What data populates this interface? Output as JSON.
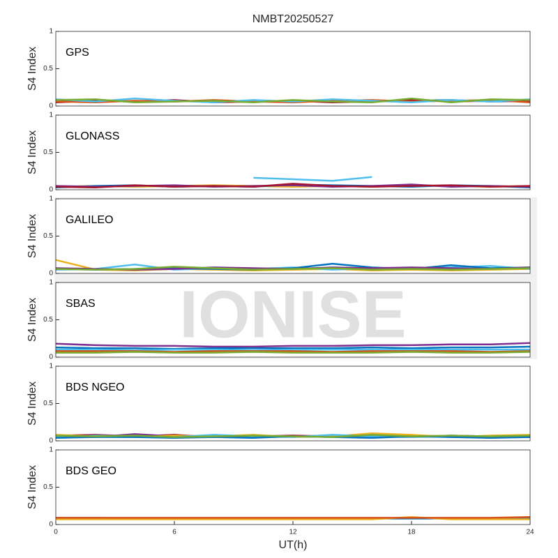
{
  "watermark": "IONISE",
  "chart_data": [
    {
      "type": "line",
      "title": "NMBT20250527",
      "label": "GPS",
      "ylabel": "S4 Index",
      "x": [
        0,
        2,
        4,
        6,
        8,
        10,
        12,
        14,
        16,
        18,
        20,
        22,
        24
      ],
      "xlim": [
        0,
        24
      ],
      "ylim": [
        0,
        1
      ],
      "yticks": [
        0,
        0.5,
        1
      ],
      "series": [
        {
          "color": "#0072BD",
          "values": [
            0.07,
            0.08,
            0.06,
            0.07,
            0.06,
            0.07,
            0.06,
            0.07,
            0.06,
            0.07,
            0.08,
            0.06,
            0.07
          ]
        },
        {
          "color": "#A2142F",
          "values": [
            0.05,
            0.07,
            0.06,
            0.08,
            0.05,
            0.06,
            0.07,
            0.05,
            0.06,
            0.08,
            0.06,
            0.07,
            0.06
          ]
        },
        {
          "color": "#D95319",
          "values": [
            0.06,
            0.05,
            0.07,
            0.06,
            0.08,
            0.06,
            0.05,
            0.07,
            0.08,
            0.06,
            0.07,
            0.08,
            0.05
          ]
        },
        {
          "color": "#4DBEEE",
          "values": [
            0.09,
            0.06,
            0.1,
            0.07,
            0.05,
            0.08,
            0.06,
            0.09,
            0.07,
            0.05,
            0.08,
            0.06,
            0.09
          ]
        },
        {
          "color": "#77AC30",
          "values": [
            0.08,
            0.09,
            0.05,
            0.06,
            0.07,
            0.05,
            0.08,
            0.06,
            0.05,
            0.1,
            0.05,
            0.09,
            0.08
          ]
        }
      ]
    },
    {
      "type": "line",
      "label": "GLONASS",
      "ylabel": "S4 Index",
      "x": [
        0,
        2,
        4,
        6,
        8,
        10,
        12,
        14,
        16,
        18,
        20,
        22,
        24
      ],
      "xlim": [
        0,
        24
      ],
      "ylim": [
        0,
        1
      ],
      "yticks": [
        0,
        0.5,
        1
      ],
      "series": [
        {
          "color": "#EDB120",
          "values": [
            0.04,
            0.05,
            0.04,
            0.05,
            0.06,
            0.05,
            0.04,
            0.05,
            0.04,
            0.06,
            0.05,
            0.04,
            0.05
          ]
        },
        {
          "color": "#0072BD",
          "values": [
            0.03,
            0.05,
            0.06,
            0.04,
            0.05,
            0.04,
            0.07,
            0.06,
            0.05,
            0.04,
            0.06,
            0.05,
            0.03
          ]
        },
        {
          "color": "#4DBEEE",
          "values": [
            null,
            null,
            null,
            null,
            null,
            0.16,
            0.14,
            0.12,
            0.17,
            null,
            null,
            null,
            null
          ]
        },
        {
          "color": "#7E2F8E",
          "values": [
            0.05,
            0.04,
            0.05,
            0.06,
            0.04,
            0.05,
            0.06,
            0.04,
            0.05,
            0.07,
            0.04,
            0.05,
            0.04
          ]
        },
        {
          "color": "#A2142F",
          "values": [
            0.04,
            0.03,
            0.06,
            0.04,
            0.05,
            0.04,
            0.08,
            0.05,
            0.04,
            0.05,
            0.06,
            0.04,
            0.05
          ]
        }
      ]
    },
    {
      "type": "line",
      "label": "GALILEO",
      "ylabel": "S4 Index",
      "x": [
        0,
        2,
        4,
        6,
        8,
        10,
        12,
        14,
        16,
        18,
        20,
        22,
        24
      ],
      "xlim": [
        0,
        24
      ],
      "ylim": [
        0,
        1
      ],
      "yticks": [
        0,
        0.5,
        1
      ],
      "series": [
        {
          "color": "#EDB120",
          "values": [
            0.18,
            0.05,
            0.04,
            0.06,
            0.05,
            0.04,
            0.05,
            0.06,
            0.04,
            0.05,
            0.04,
            0.05,
            0.06
          ]
        },
        {
          "color": "#4DBEEE",
          "values": [
            0.05,
            0.06,
            0.12,
            0.05,
            0.07,
            0.06,
            0.08,
            0.05,
            0.07,
            0.06,
            0.08,
            0.1,
            0.06
          ]
        },
        {
          "color": "#0072BD",
          "values": [
            0.06,
            0.05,
            0.06,
            0.07,
            0.06,
            0.05,
            0.07,
            0.13,
            0.08,
            0.06,
            0.11,
            0.07,
            0.08
          ]
        },
        {
          "color": "#7E2F8E",
          "values": [
            0.07,
            0.06,
            0.05,
            0.06,
            0.08,
            0.07,
            0.06,
            0.08,
            0.07,
            0.08,
            0.07,
            0.06,
            0.08
          ]
        },
        {
          "color": "#77AC30",
          "values": [
            0.06,
            0.05,
            0.06,
            0.09,
            0.07,
            0.05,
            0.06,
            0.07,
            0.05,
            0.06,
            0.05,
            0.06,
            0.07
          ]
        }
      ]
    },
    {
      "type": "line",
      "label": "SBAS",
      "ylabel": "S4 Index",
      "x": [
        0,
        2,
        4,
        6,
        8,
        10,
        12,
        14,
        16,
        18,
        20,
        22,
        24
      ],
      "xlim": [
        0,
        24
      ],
      "ylim": [
        0,
        1
      ],
      "yticks": [
        0,
        0.5,
        1
      ],
      "series": [
        {
          "color": "#7E2F8E",
          "values": [
            0.18,
            0.16,
            0.15,
            0.15,
            0.14,
            0.14,
            0.15,
            0.15,
            0.16,
            0.16,
            0.17,
            0.17,
            0.19
          ]
        },
        {
          "color": "#0072BD",
          "values": [
            0.13,
            0.12,
            0.12,
            0.11,
            0.12,
            0.12,
            0.12,
            0.12,
            0.13,
            0.12,
            0.13,
            0.13,
            0.14
          ]
        },
        {
          "color": "#4DBEEE",
          "values": [
            0.1,
            0.1,
            0.09,
            0.1,
            0.1,
            0.09,
            0.1,
            0.1,
            0.1,
            0.1,
            0.1,
            0.1,
            0.1
          ]
        },
        {
          "color": "#D95319",
          "values": [
            0.08,
            0.08,
            0.08,
            0.07,
            0.08,
            0.08,
            0.08,
            0.07,
            0.08,
            0.08,
            0.08,
            0.07,
            0.08
          ]
        },
        {
          "color": "#77AC30",
          "values": [
            0.06,
            0.06,
            0.07,
            0.06,
            0.06,
            0.07,
            0.06,
            0.06,
            0.06,
            0.07,
            0.06,
            0.06,
            0.07
          ]
        }
      ]
    },
    {
      "type": "line",
      "label": "BDS NGEO",
      "ylabel": "S4 Index",
      "x": [
        0,
        2,
        4,
        6,
        8,
        10,
        12,
        14,
        16,
        18,
        20,
        22,
        24
      ],
      "xlim": [
        0,
        24
      ],
      "ylim": [
        0,
        1
      ],
      "yticks": [
        0,
        0.5,
        1
      ],
      "series": [
        {
          "color": "#A2142F",
          "values": [
            0.07,
            0.08,
            0.06,
            0.08,
            0.05,
            0.06,
            0.07,
            0.06,
            0.05,
            0.07,
            0.06,
            0.05,
            0.06
          ]
        },
        {
          "color": "#7E2F8E",
          "values": [
            0.06,
            0.05,
            0.09,
            0.06,
            0.07,
            0.05,
            0.06,
            0.07,
            0.06,
            0.05,
            0.07,
            0.06,
            0.05
          ]
        },
        {
          "color": "#EDB120",
          "values": [
            0.08,
            0.06,
            0.05,
            0.07,
            0.06,
            0.08,
            0.05,
            0.06,
            0.1,
            0.08,
            0.05,
            0.07,
            0.08
          ]
        },
        {
          "color": "#4DBEEE",
          "values": [
            0.05,
            0.07,
            0.06,
            0.05,
            0.08,
            0.06,
            0.05,
            0.08,
            0.06,
            0.05,
            0.06,
            0.04,
            0.06
          ]
        },
        {
          "color": "#0072BD",
          "values": [
            0.04,
            0.05,
            0.05,
            0.04,
            0.05,
            0.04,
            0.06,
            0.05,
            0.04,
            0.06,
            0.05,
            0.04,
            0.05
          ]
        },
        {
          "color": "#77AC30",
          "values": [
            0.07,
            0.06,
            0.07,
            0.05,
            0.06,
            0.07,
            0.06,
            0.05,
            0.08,
            0.06,
            0.07,
            0.06,
            0.07
          ]
        }
      ]
    },
    {
      "type": "line",
      "label": "BDS GEO",
      "ylabel": "S4 Index",
      "xlabel": "UT(h)",
      "x": [
        0,
        2,
        4,
        6,
        8,
        10,
        12,
        14,
        16,
        18,
        20,
        22,
        24
      ],
      "xlim": [
        0,
        24
      ],
      "ylim": [
        0,
        1
      ],
      "yticks": [
        0,
        0.5,
        1
      ],
      "xticks": [
        0,
        6,
        12,
        18,
        24
      ],
      "series": [
        {
          "color": "#0072BD",
          "values": [
            0.09,
            0.09,
            0.08,
            0.08,
            0.08,
            0.08,
            0.08,
            0.08,
            0.08,
            0.08,
            0.08,
            0.08,
            0.09
          ]
        },
        {
          "color": "#EDB120",
          "values": [
            0.07,
            0.07,
            0.07,
            0.07,
            0.07,
            0.07,
            0.07,
            0.07,
            0.07,
            0.1,
            0.07,
            0.07,
            0.07
          ]
        },
        {
          "color": "#D95319",
          "values": [
            0.09,
            0.09,
            0.09,
            0.09,
            0.09,
            0.09,
            0.09,
            0.09,
            0.09,
            0.09,
            0.09,
            0.09,
            0.1
          ]
        }
      ]
    }
  ]
}
